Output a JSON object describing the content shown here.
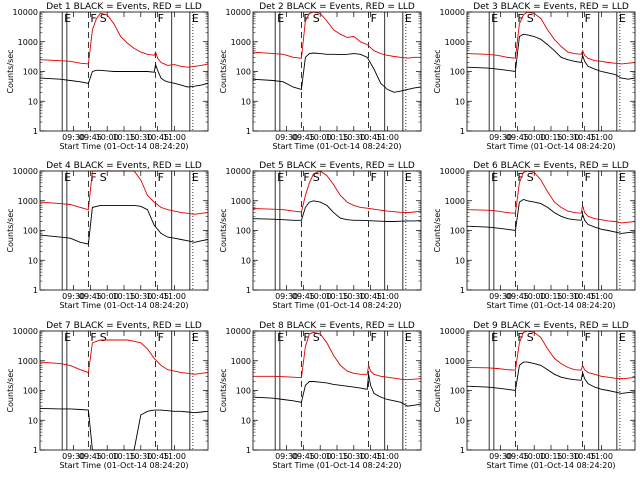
{
  "figure": {
    "xlabel": "Start Time (01-Oct-14 08:24:20)",
    "ylabel": "Counts/sec",
    "x_ticks": [
      "09:30",
      "09:45",
      "10:00",
      "10:15",
      "10:30",
      "10:45",
      "11:00"
    ],
    "y_ticks": [
      "1",
      "10",
      "100",
      "1000",
      "10000"
    ],
    "colors": {
      "events": "#000000",
      "lld": "#e00000"
    }
  },
  "chart_data": [
    {
      "type": "line",
      "title": "Det 1 BLACK = Events, RED = LLD",
      "labels": [
        {
          "text": "E",
          "x": 9.33
        },
        {
          "text": "F",
          "x": 9.72
        },
        {
          "text": "S",
          "x": 9.86
        },
        {
          "text": "F",
          "x": 10.72
        },
        {
          "text": "E",
          "x": 11.23
        }
      ],
      "x": [
        9.0,
        9.3,
        9.45,
        9.6,
        9.72,
        9.78,
        9.84,
        9.9,
        10.0,
        10.1,
        10.2,
        10.3,
        10.4,
        10.5,
        10.6,
        10.7,
        10.72,
        10.75,
        10.8,
        10.85,
        10.9,
        11.0,
        11.1,
        11.2,
        11.3,
        11.4,
        11.5
      ],
      "ylim": [
        1,
        10000
      ],
      "xlim": [
        9.0,
        11.5
      ],
      "series": [
        {
          "values": [
            250,
            230,
            220,
            190,
            180,
            2500,
            6000,
            9000,
            8000,
            4000,
            1500,
            900,
            600,
            450,
            380,
            350,
            450,
            280,
            200,
            180,
            160,
            170,
            150,
            140,
            150,
            160,
            180
          ]
        },
        {
          "values": [
            60,
            55,
            50,
            45,
            40,
            100,
            110,
            110,
            105,
            100,
            100,
            100,
            100,
            100,
            100,
            95,
            170,
            110,
            60,
            50,
            45,
            40,
            35,
            30,
            32,
            35,
            40
          ]
        }
      ]
    },
    {
      "type": "line",
      "title": "Det 2 BLACK = Events, RED = LLD",
      "labels": [
        {
          "text": "E",
          "x": 9.33
        },
        {
          "text": "F",
          "x": 9.72
        },
        {
          "text": "S",
          "x": 9.86
        },
        {
          "text": "F",
          "x": 10.72
        },
        {
          "text": "E",
          "x": 11.23
        }
      ],
      "x": [
        9.0,
        9.3,
        9.45,
        9.6,
        9.72,
        9.78,
        9.84,
        9.9,
        10.0,
        10.1,
        10.2,
        10.3,
        10.4,
        10.5,
        10.6,
        10.7,
        10.8,
        10.9,
        11.0,
        11.1,
        11.2,
        11.3,
        11.4,
        11.5
      ],
      "ylim": [
        1,
        10000
      ],
      "xlim": [
        9.0,
        11.5
      ],
      "series": [
        {
          "values": [
            450,
            400,
            380,
            300,
            280,
            5000,
            9000,
            10000,
            9000,
            5000,
            2500,
            1800,
            1400,
            1500,
            1000,
            800,
            500,
            400,
            350,
            320,
            300,
            280,
            300,
            300
          ]
        },
        {
          "values": [
            55,
            50,
            45,
            30,
            25,
            300,
            400,
            420,
            400,
            380,
            380,
            370,
            380,
            400,
            380,
            300,
            120,
            40,
            25,
            20,
            22,
            25,
            28,
            30
          ]
        }
      ]
    },
    {
      "type": "line",
      "title": "Det 3 BLACK = Events, RED = LLD",
      "labels": [
        {
          "text": "E",
          "x": 9.33
        },
        {
          "text": "F",
          "x": 9.72
        },
        {
          "text": "S",
          "x": 9.86
        },
        {
          "text": "F",
          "x": 10.72
        },
        {
          "text": "E",
          "x": 11.23
        }
      ],
      "x": [
        9.0,
        9.3,
        9.45,
        9.6,
        9.72,
        9.78,
        9.84,
        9.9,
        10.0,
        10.1,
        10.2,
        10.3,
        10.4,
        10.5,
        10.6,
        10.7,
        10.72,
        10.75,
        10.8,
        10.9,
        11.0,
        11.1,
        11.2,
        11.3,
        11.4,
        11.5
      ],
      "ylim": [
        1,
        10000
      ],
      "xlim": [
        9.0,
        11.5
      ],
      "series": [
        {
          "values": [
            400,
            380,
            350,
            300,
            280,
            4000,
            8000,
            10000,
            9000,
            6000,
            2500,
            1200,
            700,
            450,
            400,
            380,
            500,
            350,
            280,
            230,
            220,
            200,
            190,
            180,
            190,
            200
          ]
        },
        {
          "values": [
            140,
            130,
            120,
            110,
            100,
            1500,
            1800,
            1700,
            1500,
            1200,
            800,
            500,
            300,
            250,
            220,
            200,
            350,
            220,
            150,
            120,
            100,
            90,
            80,
            60,
            55,
            60
          ]
        }
      ]
    },
    {
      "type": "line",
      "title": "Det 4 BLACK = Events, RED = LLD",
      "labels": [
        {
          "text": "E",
          "x": 9.33
        },
        {
          "text": "F",
          "x": 9.72
        },
        {
          "text": "S",
          "x": 9.86
        },
        {
          "text": "F",
          "x": 10.72
        },
        {
          "text": "E",
          "x": 11.23
        }
      ],
      "x": [
        9.0,
        9.3,
        9.45,
        9.6,
        9.72,
        9.78,
        9.9,
        10.0,
        10.2,
        10.4,
        10.5,
        10.6,
        10.7,
        10.8,
        10.9,
        11.0,
        11.1,
        11.2,
        11.3,
        11.4,
        11.5
      ],
      "ylim": [
        1,
        10000
      ],
      "xlim": [
        9.0,
        11.5
      ],
      "series": [
        {
          "values": [
            900,
            800,
            750,
            600,
            500,
            10000,
            10000,
            10000,
            10000,
            10000,
            5000,
            1500,
            900,
            600,
            500,
            450,
            400,
            380,
            350,
            380,
            400
          ]
        },
        {
          "values": [
            70,
            60,
            55,
            40,
            35,
            600,
            700,
            700,
            700,
            700,
            650,
            500,
            150,
            80,
            60,
            55,
            50,
            45,
            40,
            45,
            50
          ]
        }
      ]
    },
    {
      "type": "line",
      "title": "Det 5 BLACK = Events, RED = LLD",
      "labels": [
        {
          "text": "E",
          "x": 9.33
        },
        {
          "text": "F",
          "x": 9.72
        },
        {
          "text": "S",
          "x": 9.86
        },
        {
          "text": "F",
          "x": 10.72
        },
        {
          "text": "E",
          "x": 11.23
        }
      ],
      "x": [
        9.0,
        9.3,
        9.45,
        9.6,
        9.72,
        9.78,
        9.84,
        9.9,
        10.0,
        10.1,
        10.2,
        10.3,
        10.4,
        10.5,
        10.6,
        10.7,
        10.8,
        10.9,
        11.0,
        11.1,
        11.2,
        11.3,
        11.4,
        11.5
      ],
      "ylim": [
        1,
        10000
      ],
      "xlim": [
        9.0,
        11.5
      ],
      "series": [
        {
          "values": [
            550,
            520,
            500,
            450,
            420,
            1500,
            4000,
            8000,
            10000,
            7000,
            3500,
            1500,
            900,
            700,
            600,
            560,
            520,
            480,
            450,
            430,
            410,
            400,
            420,
            450
          ]
        },
        {
          "values": [
            250,
            240,
            230,
            220,
            220,
            600,
            900,
            1000,
            900,
            700,
            400,
            260,
            230,
            220,
            220,
            215,
            210,
            205,
            200,
            200,
            205,
            210,
            210,
            215
          ]
        }
      ]
    },
    {
      "type": "line",
      "title": "Det 6 BLACK = Events, RED = LLD",
      "labels": [
        {
          "text": "E",
          "x": 9.33
        },
        {
          "text": "F",
          "x": 9.72
        },
        {
          "text": "S",
          "x": 9.86
        },
        {
          "text": "F",
          "x": 10.72
        },
        {
          "text": "E",
          "x": 11.23
        }
      ],
      "x": [
        9.0,
        9.3,
        9.45,
        9.6,
        9.72,
        9.78,
        9.84,
        9.9,
        10.0,
        10.1,
        10.2,
        10.3,
        10.4,
        10.5,
        10.6,
        10.7,
        10.72,
        10.75,
        10.8,
        10.9,
        11.0,
        11.1,
        11.2,
        11.3,
        11.4,
        11.5
      ],
      "ylim": [
        1,
        10000
      ],
      "xlim": [
        9.0,
        11.5
      ],
      "series": [
        {
          "values": [
            500,
            480,
            450,
            400,
            380,
            4000,
            9000,
            10000,
            9000,
            5000,
            2000,
            900,
            600,
            450,
            400,
            380,
            700,
            400,
            300,
            250,
            230,
            210,
            200,
            180,
            190,
            200
          ]
        },
        {
          "values": [
            140,
            130,
            120,
            110,
            100,
            900,
            1100,
            1000,
            900,
            800,
            600,
            400,
            300,
            250,
            230,
            220,
            350,
            220,
            160,
            130,
            110,
            100,
            90,
            80,
            85,
            90
          ]
        }
      ]
    },
    {
      "type": "line",
      "title": "Det 7 BLACK = Events, RED = LLD",
      "labels": [
        {
          "text": "E",
          "x": 9.33
        },
        {
          "text": "F",
          "x": 9.72
        },
        {
          "text": "S",
          "x": 9.86
        },
        {
          "text": "F",
          "x": 10.72
        },
        {
          "text": "E",
          "x": 11.23
        }
      ],
      "x": [
        9.0,
        9.3,
        9.45,
        9.6,
        9.72,
        9.78,
        9.9,
        10.0,
        10.2,
        10.3,
        10.4,
        10.5,
        10.6,
        10.7,
        10.8,
        10.9,
        11.0,
        11.1,
        11.2,
        11.3,
        11.4,
        11.5
      ],
      "ylim": [
        1,
        10000
      ],
      "xlim": [
        9.0,
        11.5
      ],
      "series": [
        {
          "values": [
            900,
            800,
            700,
            500,
            400,
            4000,
            5000,
            5000,
            5000,
            5000,
            4500,
            4000,
            2500,
            1200,
            700,
            500,
            450,
            400,
            380,
            350,
            380,
            400
          ]
        },
        {
          "values": [
            25,
            24,
            24,
            23,
            22,
            1,
            1,
            1,
            1,
            1,
            1,
            15,
            20,
            22,
            22,
            21,
            20,
            20,
            19,
            18,
            19,
            20
          ]
        }
      ]
    },
    {
      "type": "line",
      "title": "Det 8 BLACK = Events, RED = LLD",
      "labels": [
        {
          "text": "E",
          "x": 9.33
        },
        {
          "text": "F",
          "x": 9.72
        },
        {
          "text": "S",
          "x": 9.86
        },
        {
          "text": "F",
          "x": 10.72
        },
        {
          "text": "E",
          "x": 11.23
        }
      ],
      "x": [
        9.0,
        9.3,
        9.45,
        9.6,
        9.72,
        9.78,
        9.84,
        9.9,
        10.0,
        10.1,
        10.2,
        10.3,
        10.4,
        10.5,
        10.6,
        10.7,
        10.72,
        10.75,
        10.8,
        10.9,
        11.0,
        11.1,
        11.2,
        11.3,
        11.4,
        11.5
      ],
      "ylim": [
        1,
        10000
      ],
      "xlim": [
        9.0,
        11.5
      ],
      "series": [
        {
          "values": [
            300,
            300,
            290,
            280,
            270,
            3000,
            8000,
            9000,
            8000,
            4000,
            1500,
            700,
            450,
            380,
            350,
            350,
            700,
            450,
            350,
            300,
            280,
            260,
            240,
            230,
            240,
            250
          ]
        },
        {
          "values": [
            60,
            55,
            50,
            45,
            40,
            150,
            200,
            200,
            190,
            180,
            160,
            150,
            140,
            130,
            120,
            110,
            350,
            150,
            80,
            60,
            50,
            45,
            40,
            30,
            32,
            35
          ]
        }
      ]
    },
    {
      "type": "line",
      "title": "Det 9 BLACK = Events, RED = LLD",
      "labels": [
        {
          "text": "E",
          "x": 9.33
        },
        {
          "text": "F",
          "x": 9.72
        },
        {
          "text": "S",
          "x": 9.86
        },
        {
          "text": "F",
          "x": 10.72
        },
        {
          "text": "E",
          "x": 11.23
        }
      ],
      "x": [
        9.0,
        9.3,
        9.45,
        9.6,
        9.72,
        9.78,
        9.84,
        9.9,
        10.0,
        10.1,
        10.2,
        10.3,
        10.4,
        10.5,
        10.6,
        10.7,
        10.72,
        10.75,
        10.8,
        10.9,
        11.0,
        11.1,
        11.2,
        11.3,
        11.4,
        11.5
      ],
      "ylim": [
        1,
        10000
      ],
      "xlim": [
        9.0,
        11.5
      ],
      "series": [
        {
          "values": [
            600,
            580,
            550,
            500,
            480,
            4000,
            9000,
            10000,
            9000,
            6000,
            2500,
            1200,
            800,
            600,
            500,
            480,
            700,
            500,
            400,
            350,
            300,
            280,
            260,
            250,
            260,
            280
          ]
        },
        {
          "values": [
            140,
            130,
            120,
            110,
            100,
            700,
            900,
            900,
            800,
            700,
            500,
            350,
            280,
            250,
            230,
            220,
            400,
            250,
            170,
            130,
            110,
            100,
            90,
            80,
            85,
            90
          ]
        }
      ]
    }
  ]
}
